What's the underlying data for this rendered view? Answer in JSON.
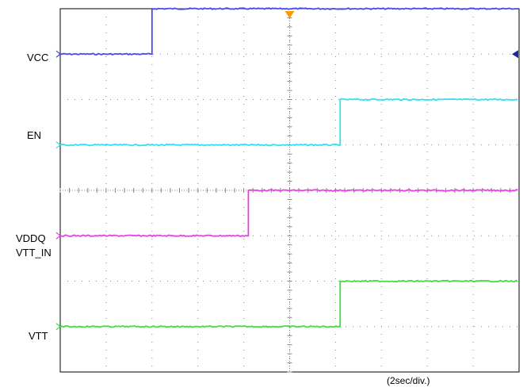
{
  "chart_data": {
    "type": "line",
    "title": "",
    "xlabel": "(2sec/div.)",
    "ylabel": "",
    "grid": true,
    "divisions": {
      "x": 10,
      "y": 8
    },
    "xlim": [
      0,
      20
    ],
    "time_per_division": "2sec/div.",
    "series": [
      {
        "name": "VCC",
        "color": "#4a4ae8",
        "low_div": 1.0,
        "high_div": 0.0,
        "step_time_s": 4.0
      },
      {
        "name": "EN",
        "color": "#33e0f0",
        "low_div": 3.0,
        "high_div": 2.0,
        "step_time_s": 12.2
      },
      {
        "name": "VDDQ\nVTT_IN",
        "color": "#e840e8",
        "low_div": 5.0,
        "high_div": 4.0,
        "step_time_s": 8.2
      },
      {
        "name": "VTT",
        "color": "#44dd44",
        "low_div": 7.0,
        "high_div": 6.0,
        "step_time_s": 12.2
      }
    ]
  },
  "labels": {
    "vcc": "VCC",
    "en": "EN",
    "vddq": "VDDQ",
    "vtt_in": "VTT_IN",
    "vtt": "VTT",
    "time_scale": "(2sec/div.)"
  },
  "colors": {
    "grid": "#888888",
    "frame": "#000000",
    "trigger_marker": "#ff9900",
    "ref_marker": "#1a2aa0"
  }
}
